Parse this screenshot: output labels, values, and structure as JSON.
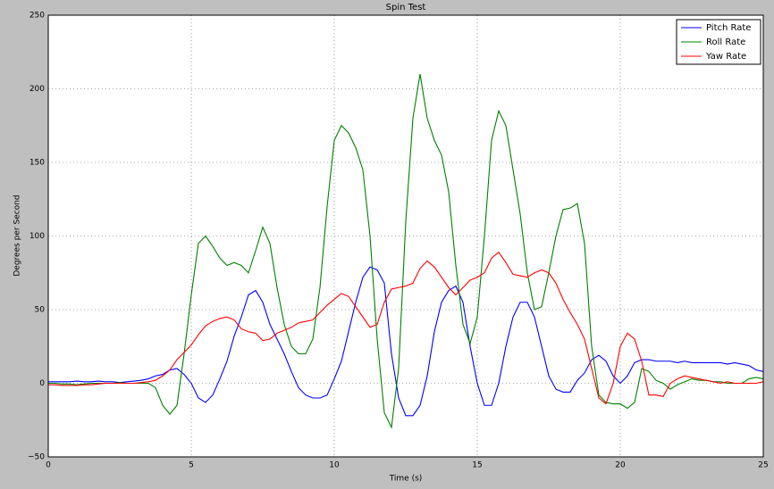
{
  "chart_data": {
    "type": "line",
    "title": "Spin Test",
    "x_label": "Time (s)",
    "y_label": "Degrees per Second",
    "x": [
      0,
      0.25,
      0.5,
      0.75,
      1,
      1.25,
      1.5,
      1.75,
      2,
      2.25,
      2.5,
      2.75,
      3,
      3.25,
      3.5,
      3.75,
      4,
      4.25,
      4.5,
      4.75,
      5,
      5.25,
      5.5,
      5.75,
      6,
      6.25,
      6.5,
      6.75,
      7,
      7.25,
      7.5,
      7.75,
      8,
      8.25,
      8.5,
      8.75,
      9,
      9.25,
      9.5,
      9.75,
      10,
      10.25,
      10.5,
      10.75,
      11,
      11.25,
      11.5,
      11.75,
      12,
      12.25,
      12.5,
      12.75,
      13,
      13.25,
      13.5,
      13.75,
      14,
      14.25,
      14.5,
      14.75,
      15,
      15.25,
      15.5,
      15.75,
      16,
      16.25,
      16.5,
      16.75,
      17,
      17.25,
      17.5,
      17.75,
      18,
      18.25,
      18.5,
      18.75,
      19,
      19.25,
      19.5,
      19.75,
      20,
      20.25,
      20.5,
      20.75,
      21,
      21.25,
      21.5,
      21.75,
      22,
      22.25,
      22.5,
      22.75,
      23,
      23.25,
      23.5,
      23.75,
      24,
      24.25,
      24.5,
      24.75,
      25
    ],
    "series": [
      {
        "name": "Pitch Rate",
        "color": "#0000ff",
        "values": [
          1,
          1,
          1,
          1,
          1.5,
          1,
          1,
          1.5,
          1,
          1,
          0.5,
          1,
          1.5,
          2,
          3,
          5,
          6,
          9,
          10,
          6,
          0,
          -10,
          -13,
          -8,
          3,
          15,
          32,
          45,
          60,
          63,
          55,
          40,
          30,
          20,
          8,
          -3,
          -8,
          -10,
          -10,
          -8,
          3,
          15,
          35,
          55,
          72,
          79,
          77,
          68,
          20,
          -10,
          -22,
          -22,
          -15,
          5,
          35,
          55,
          63,
          66,
          55,
          25,
          0,
          -15,
          -15,
          0,
          25,
          45,
          55,
          55,
          45,
          25,
          5,
          -4,
          -6,
          -6,
          2,
          7,
          16,
          19,
          15,
          5,
          0,
          5,
          14,
          16,
          16,
          15,
          15,
          15,
          14,
          15,
          14,
          14,
          14,
          14,
          14,
          13,
          14,
          13,
          12,
          9,
          8
        ]
      },
      {
        "name": "Roll Rate",
        "color": "#008000",
        "values": [
          0,
          0,
          -0.5,
          -0.5,
          -1,
          -0.5,
          0,
          0,
          0,
          0,
          0.5,
          0,
          0,
          0,
          0,
          -3,
          -15,
          -21,
          -15,
          20,
          60,
          95,
          100,
          93,
          85,
          80,
          82,
          80,
          75,
          90,
          106,
          95,
          65,
          40,
          25,
          20,
          20,
          30,
          65,
          120,
          165,
          175,
          170,
          160,
          145,
          100,
          30,
          -20,
          -30,
          10,
          110,
          180,
          210,
          180,
          165,
          155,
          130,
          80,
          40,
          27,
          45,
          100,
          165,
          185,
          175,
          145,
          115,
          75,
          50,
          52,
          75,
          100,
          118,
          119,
          122,
          95,
          25,
          -8,
          -13,
          -14,
          -14,
          -17,
          -13,
          10,
          8,
          2,
          0,
          -4,
          -1,
          1,
          3,
          2,
          2,
          1,
          1,
          0,
          0,
          0,
          3,
          4,
          3
        ]
      },
      {
        "name": "Yaw Rate",
        "color": "#ff0000",
        "values": [
          -1,
          -1,
          -1.5,
          -1.5,
          -1.5,
          -1,
          -1,
          -0.5,
          0,
          0,
          0,
          0,
          0,
          0.5,
          1,
          2,
          5,
          9,
          16,
          21,
          26,
          33,
          39,
          42,
          44,
          45,
          43,
          37,
          35,
          34,
          29,
          30,
          34,
          36,
          38,
          41,
          42,
          43,
          48,
          53,
          57,
          61,
          59,
          52,
          45,
          38,
          40,
          55,
          64,
          65,
          66,
          68,
          78,
          83,
          79,
          72,
          65,
          60,
          65,
          70,
          72,
          75,
          85,
          89,
          82,
          74,
          73,
          72,
          75,
          77,
          75,
          68,
          57,
          48,
          40,
          30,
          10,
          -10,
          -14,
          0,
          25,
          34,
          30,
          15,
          -8,
          -8,
          -9,
          0,
          3,
          5,
          4,
          3,
          2,
          1,
          0,
          1,
          0,
          0,
          0,
          0,
          1
        ]
      }
    ],
    "xlim": [
      0,
      25
    ],
    "ylim": [
      -50,
      250
    ],
    "xticks": [
      0,
      5,
      10,
      15,
      20,
      25
    ],
    "yticks": [
      {
        "value": -50,
        "label": "−50"
      },
      0,
      50,
      100,
      150,
      200,
      250
    ],
    "grid": true,
    "legend": "upper right"
  }
}
